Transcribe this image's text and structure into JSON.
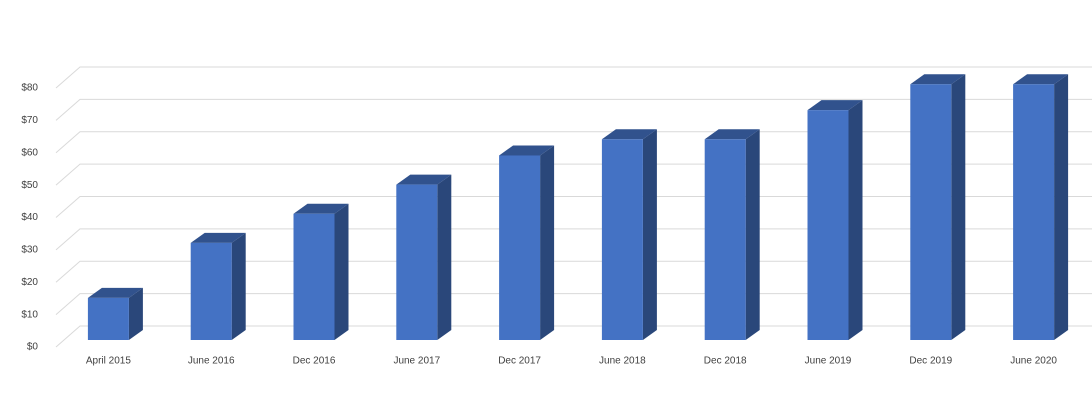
{
  "chart_data": {
    "type": "bar3d",
    "categories": [
      "April 2015",
      "June 2016",
      "Dec 2016",
      "June 2017",
      "Dec 2017",
      "June 2018",
      "Dec 2018",
      "June 2019",
      "Dec 2019",
      "June 2020"
    ],
    "values": [
      13,
      30,
      39,
      48,
      57,
      62,
      62,
      71,
      79,
      79
    ],
    "color": "#4472c4",
    "ylim": [
      0,
      80
    ],
    "yticks": [
      {
        "value": 0,
        "label": "$0"
      },
      {
        "value": 10,
        "label": "$10"
      },
      {
        "value": 20,
        "label": "$20"
      },
      {
        "value": 30,
        "label": "$30"
      },
      {
        "value": 40,
        "label": "$40"
      },
      {
        "value": 50,
        "label": "$50"
      },
      {
        "value": 60,
        "label": "$60"
      },
      {
        "value": 70,
        "label": "$70"
      },
      {
        "value": 80,
        "label": "$80"
      }
    ],
    "grid": true
  }
}
